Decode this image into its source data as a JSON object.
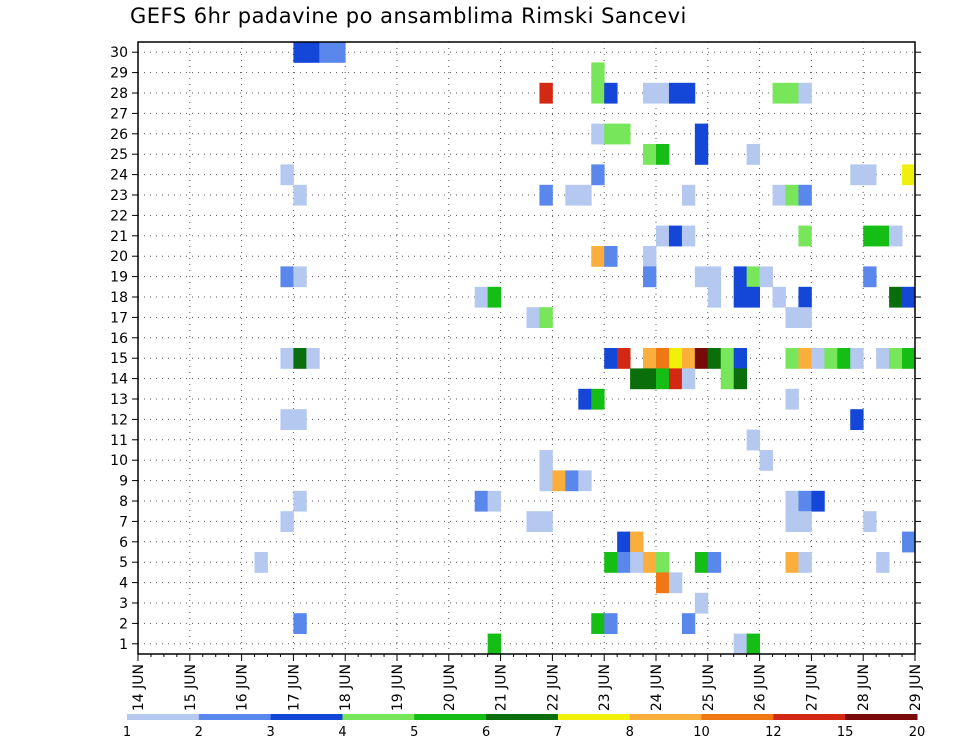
{
  "chart_data": {
    "type": "heatmap",
    "title": "GEFS 6hr padavine po ansamblima Rimski Sancevi",
    "y_categories": [
      "1",
      "2",
      "3",
      "4",
      "5",
      "6",
      "7",
      "8",
      "9",
      "10",
      "11",
      "12",
      "13",
      "14",
      "15",
      "16",
      "17",
      "18",
      "19",
      "20",
      "21",
      "22",
      "23",
      "24",
      "25",
      "26",
      "27",
      "28",
      "29",
      "30"
    ],
    "x_tick_labels": [
      "14 JUN",
      "15 JUN",
      "16 JUN",
      "17 JUN",
      "18 JUN",
      "19 JUN",
      "20 JUN",
      "21 JUN",
      "22 JUN",
      "23 JUN",
      "24 JUN",
      "25 JUN",
      "26 JUN",
      "27 JUN",
      "28 JUN",
      "29 JUN"
    ],
    "xlim": [
      "14 JUN",
      "29 JUN"
    ],
    "time_step_hours": 6,
    "grid": "dotted",
    "colorbar": {
      "bounds": [
        "1",
        "2",
        "3",
        "4",
        "5",
        "6",
        "7",
        "8",
        "10",
        "12",
        "15",
        "20"
      ],
      "colors": [
        "#b4c8f0",
        "#5a87eb",
        "#1446d7",
        "#78e65a",
        "#14be14",
        "#0a6e0a",
        "#f0f00a",
        "#faaf3c",
        "#f07814",
        "#d22814",
        "#780a0a"
      ]
    },
    "cells": [
      {
        "member": 30,
        "t": "17 JUN 00Z",
        "c": 2
      },
      {
        "member": 30,
        "t": "17 JUN 06Z",
        "c": 2
      },
      {
        "member": 30,
        "t": "17 JUN 12Z",
        "c": 1
      },
      {
        "member": 30,
        "t": "17 JUN 18Z",
        "c": 1
      },
      {
        "member": 29,
        "t": "22 JUN 18Z",
        "c": 3
      },
      {
        "member": 28,
        "t": "21 JUN 18Z",
        "c": 9
      },
      {
        "member": 28,
        "t": "22 JUN 18Z",
        "c": 3
      },
      {
        "member": 28,
        "t": "23 JUN 00Z",
        "c": 2
      },
      {
        "member": 28,
        "t": "23 JUN 18Z",
        "c": 0
      },
      {
        "member": 28,
        "t": "24 JUN 00Z",
        "c": 0
      },
      {
        "member": 28,
        "t": "24 JUN 06Z",
        "c": 2
      },
      {
        "member": 28,
        "t": "24 JUN 12Z",
        "c": 2
      },
      {
        "member": 28,
        "t": "26 JUN 06Z",
        "c": 3
      },
      {
        "member": 28,
        "t": "26 JUN 12Z",
        "c": 3
      },
      {
        "member": 28,
        "t": "26 JUN 18Z",
        "c": 0
      },
      {
        "member": 26,
        "t": "22 JUN 18Z",
        "c": 0
      },
      {
        "member": 26,
        "t": "23 JUN 00Z",
        "c": 3
      },
      {
        "member": 26,
        "t": "23 JUN 06Z",
        "c": 3
      },
      {
        "member": 26,
        "t": "24 JUN 18Z",
        "c": 2
      },
      {
        "member": 25,
        "t": "23 JUN 18Z",
        "c": 3
      },
      {
        "member": 25,
        "t": "24 JUN 00Z",
        "c": 4
      },
      {
        "member": 25,
        "t": "24 JUN 18Z",
        "c": 2
      },
      {
        "member": 25,
        "t": "25 JUN 18Z",
        "c": 0
      },
      {
        "member": 24,
        "t": "16 JUN 18Z",
        "c": 0
      },
      {
        "member": 24,
        "t": "22 JUN 18Z",
        "c": 1
      },
      {
        "member": 24,
        "t": "27 JUN 18Z",
        "c": 0
      },
      {
        "member": 24,
        "t": "28 JUN 00Z",
        "c": 0
      },
      {
        "member": 24,
        "t": "28 JUN 18Z",
        "c": 6
      },
      {
        "member": 23,
        "t": "17 JUN 00Z",
        "c": 0
      },
      {
        "member": 23,
        "t": "21 JUN 18Z",
        "c": 1
      },
      {
        "member": 23,
        "t": "22 JUN 06Z",
        "c": 0
      },
      {
        "member": 23,
        "t": "22 JUN 12Z",
        "c": 0
      },
      {
        "member": 23,
        "t": "24 JUN 12Z",
        "c": 0
      },
      {
        "member": 23,
        "t": "26 JUN 06Z",
        "c": 0
      },
      {
        "member": 23,
        "t": "26 JUN 12Z",
        "c": 3
      },
      {
        "member": 23,
        "t": "26 JUN 18Z",
        "c": 1
      },
      {
        "member": 21,
        "t": "24 JUN 00Z",
        "c": 0
      },
      {
        "member": 21,
        "t": "24 JUN 06Z",
        "c": 2
      },
      {
        "member": 21,
        "t": "24 JUN 12Z",
        "c": 0
      },
      {
        "member": 21,
        "t": "26 JUN 18Z",
        "c": 3
      },
      {
        "member": 21,
        "t": "28 JUN 00Z",
        "c": 4
      },
      {
        "member": 21,
        "t": "28 JUN 06Z",
        "c": 4
      },
      {
        "member": 21,
        "t": "28 JUN 12Z",
        "c": 0
      },
      {
        "member": 20,
        "t": "22 JUN 18Z",
        "c": 7
      },
      {
        "member": 20,
        "t": "23 JUN 00Z",
        "c": 1
      },
      {
        "member": 20,
        "t": "23 JUN 18Z",
        "c": 0
      },
      {
        "member": 19,
        "t": "16 JUN 18Z",
        "c": 1
      },
      {
        "member": 19,
        "t": "17 JUN 00Z",
        "c": 0
      },
      {
        "member": 19,
        "t": "23 JUN 18Z",
        "c": 1
      },
      {
        "member": 19,
        "t": "24 JUN 18Z",
        "c": 0
      },
      {
        "member": 19,
        "t": "25 JUN 00Z",
        "c": 0
      },
      {
        "member": 19,
        "t": "25 JUN 12Z",
        "c": 2
      },
      {
        "member": 19,
        "t": "25 JUN 18Z",
        "c": 3
      },
      {
        "member": 19,
        "t": "26 JUN 00Z",
        "c": 0
      },
      {
        "member": 19,
        "t": "28 JUN 00Z",
        "c": 1
      },
      {
        "member": 18,
        "t": "20 JUN 12Z",
        "c": 0
      },
      {
        "member": 18,
        "t": "20 JUN 18Z",
        "c": 4
      },
      {
        "member": 18,
        "t": "25 JUN 00Z",
        "c": 0
      },
      {
        "member": 18,
        "t": "25 JUN 12Z",
        "c": 2
      },
      {
        "member": 18,
        "t": "25 JUN 18Z",
        "c": 2
      },
      {
        "member": 18,
        "t": "26 JUN 06Z",
        "c": 0
      },
      {
        "member": 18,
        "t": "26 JUN 18Z",
        "c": 2
      },
      {
        "member": 18,
        "t": "28 JUN 12Z",
        "c": 5
      },
      {
        "member": 18,
        "t": "28 JUN 18Z",
        "c": 2
      },
      {
        "member": 17,
        "t": "21 JUN 12Z",
        "c": 0
      },
      {
        "member": 17,
        "t": "21 JUN 18Z",
        "c": 3
      },
      {
        "member": 17,
        "t": "26 JUN 12Z",
        "c": 0
      },
      {
        "member": 17,
        "t": "26 JUN 18Z",
        "c": 0
      },
      {
        "member": 15,
        "t": "16 JUN 18Z",
        "c": 0
      },
      {
        "member": 15,
        "t": "17 JUN 00Z",
        "c": 5
      },
      {
        "member": 15,
        "t": "17 JUN 06Z",
        "c": 0
      },
      {
        "member": 15,
        "t": "23 JUN 00Z",
        "c": 2
      },
      {
        "member": 15,
        "t": "23 JUN 06Z",
        "c": 9
      },
      {
        "member": 15,
        "t": "23 JUN 18Z",
        "c": 7
      },
      {
        "member": 15,
        "t": "24 JUN 00Z",
        "c": 8
      },
      {
        "member": 15,
        "t": "24 JUN 06Z",
        "c": 6
      },
      {
        "member": 15,
        "t": "24 JUN 12Z",
        "c": 7
      },
      {
        "member": 15,
        "t": "24 JUN 18Z",
        "c": 10
      },
      {
        "member": 15,
        "t": "25 JUN 00Z",
        "c": 5
      },
      {
        "member": 15,
        "t": "25 JUN 06Z",
        "c": 3
      },
      {
        "member": 15,
        "t": "25 JUN 12Z",
        "c": 2
      },
      {
        "member": 15,
        "t": "26 JUN 12Z",
        "c": 3
      },
      {
        "member": 15,
        "t": "26 JUN 18Z",
        "c": 7
      },
      {
        "member": 15,
        "t": "27 JUN 00Z",
        "c": 0
      },
      {
        "member": 15,
        "t": "27 JUN 06Z",
        "c": 3
      },
      {
        "member": 15,
        "t": "27 JUN 12Z",
        "c": 4
      },
      {
        "member": 15,
        "t": "27 JUN 18Z",
        "c": 0
      },
      {
        "member": 15,
        "t": "28 JUN 06Z",
        "c": 0
      },
      {
        "member": 15,
        "t": "28 JUN 12Z",
        "c": 3
      },
      {
        "member": 15,
        "t": "28 JUN 18Z",
        "c": 4
      },
      {
        "member": 14,
        "t": "23 JUN 12Z",
        "c": 5
      },
      {
        "member": 14,
        "t": "23 JUN 18Z",
        "c": 5
      },
      {
        "member": 14,
        "t": "24 JUN 00Z",
        "c": 4
      },
      {
        "member": 14,
        "t": "24 JUN 06Z",
        "c": 9
      },
      {
        "member": 14,
        "t": "24 JUN 12Z",
        "c": 0
      },
      {
        "member": 14,
        "t": "25 JUN 06Z",
        "c": 3
      },
      {
        "member": 14,
        "t": "25 JUN 12Z",
        "c": 5
      },
      {
        "member": 13,
        "t": "22 JUN 12Z",
        "c": 2
      },
      {
        "member": 13,
        "t": "22 JUN 18Z",
        "c": 4
      },
      {
        "member": 13,
        "t": "26 JUN 12Z",
        "c": 0
      },
      {
        "member": 12,
        "t": "16 JUN 18Z",
        "c": 0
      },
      {
        "member": 12,
        "t": "17 JUN 00Z",
        "c": 0
      },
      {
        "member": 12,
        "t": "27 JUN 18Z",
        "c": 2
      },
      {
        "member": 11,
        "t": "25 JUN 18Z",
        "c": 0
      },
      {
        "member": 10,
        "t": "21 JUN 18Z",
        "c": 0
      },
      {
        "member": 10,
        "t": "26 JUN 00Z",
        "c": 0
      },
      {
        "member": 9,
        "t": "21 JUN 18Z",
        "c": 0
      },
      {
        "member": 9,
        "t": "22 JUN 00Z",
        "c": 7
      },
      {
        "member": 9,
        "t": "22 JUN 06Z",
        "c": 1
      },
      {
        "member": 9,
        "t": "22 JUN 12Z",
        "c": 0
      },
      {
        "member": 8,
        "t": "17 JUN 00Z",
        "c": 0
      },
      {
        "member": 8,
        "t": "20 JUN 12Z",
        "c": 1
      },
      {
        "member": 8,
        "t": "20 JUN 18Z",
        "c": 0
      },
      {
        "member": 8,
        "t": "26 JUN 12Z",
        "c": 0
      },
      {
        "member": 8,
        "t": "26 JUN 18Z",
        "c": 1
      },
      {
        "member": 8,
        "t": "27 JUN 00Z",
        "c": 2
      },
      {
        "member": 7,
        "t": "16 JUN 18Z",
        "c": 0
      },
      {
        "member": 7,
        "t": "21 JUN 12Z",
        "c": 0
      },
      {
        "member": 7,
        "t": "21 JUN 18Z",
        "c": 0
      },
      {
        "member": 7,
        "t": "26 JUN 12Z",
        "c": 0
      },
      {
        "member": 7,
        "t": "26 JUN 18Z",
        "c": 0
      },
      {
        "member": 7,
        "t": "28 JUN 00Z",
        "c": 0
      },
      {
        "member": 6,
        "t": "23 JUN 06Z",
        "c": 2
      },
      {
        "member": 6,
        "t": "23 JUN 12Z",
        "c": 7
      },
      {
        "member": 6,
        "t": "28 JUN 18Z",
        "c": 1
      },
      {
        "member": 5,
        "t": "16 JUN 06Z",
        "c": 0
      },
      {
        "member": 5,
        "t": "23 JUN 00Z",
        "c": 4
      },
      {
        "member": 5,
        "t": "23 JUN 06Z",
        "c": 1
      },
      {
        "member": 5,
        "t": "23 JUN 12Z",
        "c": 0
      },
      {
        "member": 5,
        "t": "23 JUN 18Z",
        "c": 7
      },
      {
        "member": 5,
        "t": "24 JUN 00Z",
        "c": 3
      },
      {
        "member": 5,
        "t": "24 JUN 18Z",
        "c": 4
      },
      {
        "member": 5,
        "t": "25 JUN 00Z",
        "c": 1
      },
      {
        "member": 5,
        "t": "26 JUN 12Z",
        "c": 7
      },
      {
        "member": 5,
        "t": "26 JUN 18Z",
        "c": 0
      },
      {
        "member": 5,
        "t": "28 JUN 06Z",
        "c": 0
      },
      {
        "member": 4,
        "t": "24 JUN 00Z",
        "c": 8
      },
      {
        "member": 4,
        "t": "24 JUN 06Z",
        "c": 0
      },
      {
        "member": 3,
        "t": "24 JUN 18Z",
        "c": 0
      },
      {
        "member": 2,
        "t": "17 JUN 00Z",
        "c": 1
      },
      {
        "member": 2,
        "t": "22 JUN 18Z",
        "c": 4
      },
      {
        "member": 2,
        "t": "23 JUN 00Z",
        "c": 1
      },
      {
        "member": 2,
        "t": "24 JUN 12Z",
        "c": 1
      },
      {
        "member": 1,
        "t": "20 JUN 18Z",
        "c": 4
      },
      {
        "member": 1,
        "t": "25 JUN 12Z",
        "c": 0
      },
      {
        "member": 1,
        "t": "25 JUN 18Z",
        "c": 4
      }
    ]
  }
}
